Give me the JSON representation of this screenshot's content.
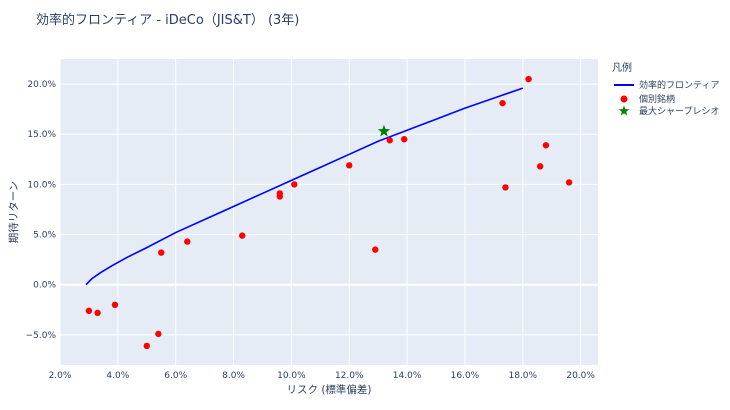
{
  "chart_data": {
    "type": "scatter",
    "title": "効率的フロンティア - iDeCo（JIS&T） (3年)",
    "xlabel": "リスク (標準偏差)",
    "ylabel": "期待リターン",
    "xlim": [
      2.0,
      20.6
    ],
    "ylim": [
      -8.0,
      22.5
    ],
    "x_ticks": [
      2,
      4,
      6,
      8,
      10,
      12,
      14,
      16,
      18,
      20
    ],
    "y_ticks": [
      -5,
      0,
      5,
      10,
      15,
      20
    ],
    "x_tick_labels": [
      "2.0%",
      "4.0%",
      "6.0%",
      "8.0%",
      "10.0%",
      "12.0%",
      "14.0%",
      "16.0%",
      "18.0%",
      "20.0%"
    ],
    "y_tick_labels": [
      "−5.0%",
      "0.0%",
      "5.0%",
      "10.0%",
      "15.0%",
      "20.0%"
    ],
    "legend": {
      "title": "凡例",
      "placement": "right",
      "entries": [
        "効率的フロンティア",
        "個別銘柄",
        "最大シャープレシオ"
      ]
    },
    "colors": {
      "frontier": "#0000ff",
      "assets": "#ff0000",
      "max_sharpe": "#008000",
      "plot_bg": "#e5ecf6",
      "grid": "#ffffff"
    },
    "series": [
      {
        "name": "効率的フロンティア",
        "type": "line",
        "x": [
          2.9,
          3.1,
          3.4,
          3.8,
          4.3,
          5.0,
          6.0,
          7.0,
          8.0,
          9.0,
          10.0,
          11.0,
          12.0,
          13.0,
          14.0,
          15.0,
          16.0,
          17.0,
          18.0
        ],
        "y": [
          0.0,
          0.6,
          1.2,
          1.9,
          2.7,
          3.7,
          5.2,
          6.5,
          7.8,
          9.1,
          10.4,
          11.7,
          13.0,
          14.3,
          15.4,
          16.5,
          17.6,
          18.6,
          19.6
        ]
      },
      {
        "name": "個別銘柄",
        "type": "scatter",
        "x": [
          3.0,
          3.3,
          3.9,
          5.0,
          5.4,
          5.5,
          6.4,
          8.3,
          9.6,
          9.6,
          10.1,
          12.0,
          12.9,
          13.4,
          13.9,
          17.3,
          17.4,
          18.2,
          18.6,
          18.8,
          19.6
        ],
        "y": [
          -2.6,
          -2.8,
          -2.0,
          -6.1,
          -4.9,
          3.2,
          4.3,
          4.9,
          9.1,
          8.8,
          10.0,
          11.9,
          3.5,
          14.4,
          14.5,
          18.1,
          9.7,
          20.5,
          11.8,
          13.9,
          10.2
        ]
      },
      {
        "name": "最大シャープレシオ",
        "type": "scatter",
        "x": [
          13.2
        ],
        "y": [
          15.3
        ]
      }
    ]
  }
}
